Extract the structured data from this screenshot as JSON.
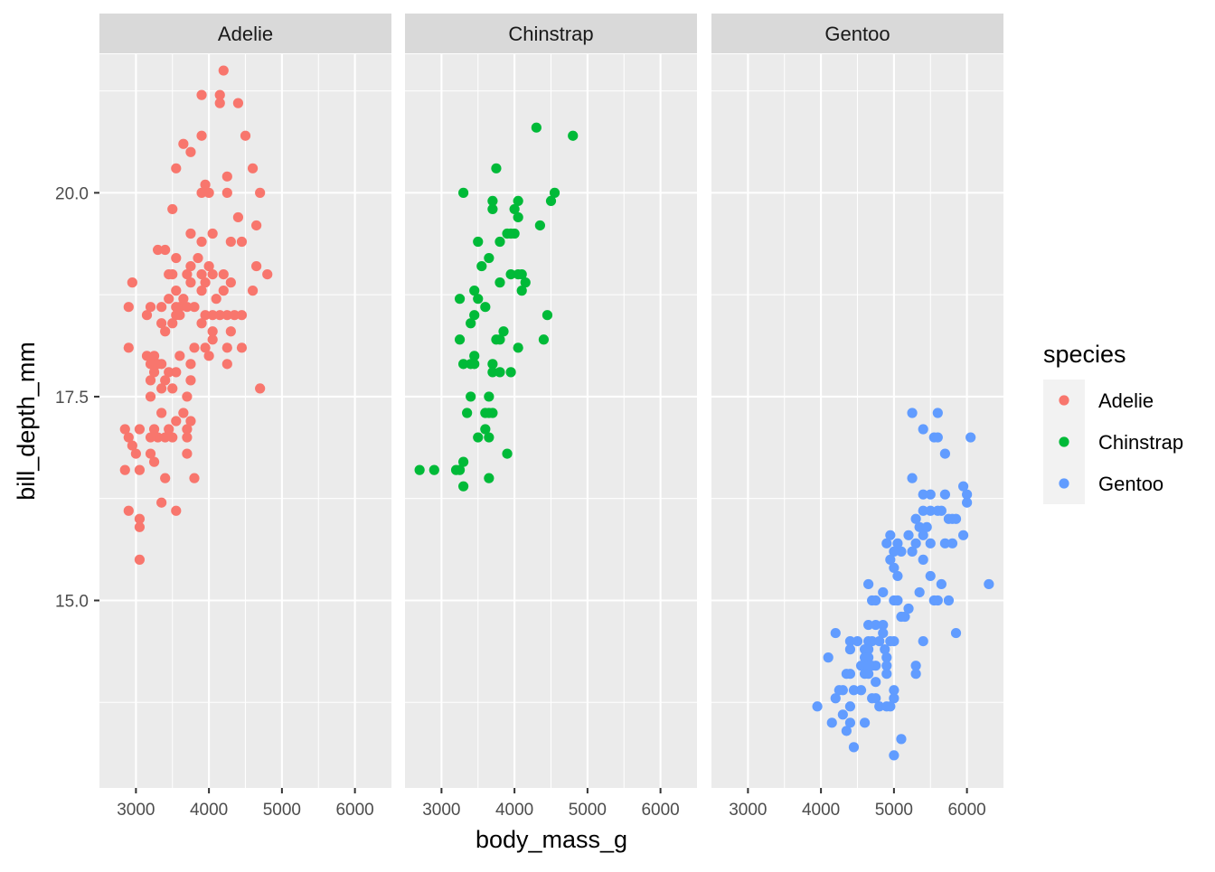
{
  "chart_data": {
    "type": "scatter",
    "facet_by": "species",
    "panels": [
      "Adelie",
      "Chinstrap",
      "Gentoo"
    ],
    "xlabel": "body_mass_g",
    "ylabel": "bill_depth_mm",
    "xlim": [
      2500,
      6500
    ],
    "ylim": [
      12.7,
      21.7
    ],
    "xticks": [
      3000,
      4000,
      5000,
      6000
    ],
    "yticks": [
      15.0,
      17.5,
      20.0
    ],
    "ytick_labels": [
      "15.0",
      "17.5",
      "20.0"
    ],
    "grid": true,
    "legend": {
      "title": "species",
      "placement": "right",
      "entries": [
        {
          "label": "Adelie",
          "color": "#F8766D"
        },
        {
          "label": "Chinstrap",
          "color": "#00BA38"
        },
        {
          "label": "Gentoo",
          "color": "#619CFF"
        }
      ]
    },
    "series": [
      {
        "name": "Adelie",
        "color": "#F8766D",
        "points": [
          [
            4200,
            21.5
          ],
          [
            3900,
            21.2
          ],
          [
            4150,
            21.2
          ],
          [
            4150,
            21.1
          ],
          [
            4400,
            21.1
          ],
          [
            3900,
            20.7
          ],
          [
            4500,
            20.7
          ],
          [
            3650,
            20.6
          ],
          [
            3750,
            20.5
          ],
          [
            3550,
            20.3
          ],
          [
            4600,
            20.3
          ],
          [
            4250,
            20.2
          ],
          [
            3950,
            20.1
          ],
          [
            3900,
            20.0
          ],
          [
            4000,
            20.0
          ],
          [
            4250,
            20.0
          ],
          [
            4700,
            20.0
          ],
          [
            3500,
            19.8
          ],
          [
            4400,
            19.7
          ],
          [
            4650,
            19.6
          ],
          [
            3750,
            19.5
          ],
          [
            4050,
            19.5
          ],
          [
            4300,
            19.4
          ],
          [
            3900,
            19.4
          ],
          [
            3300,
            19.3
          ],
          [
            3400,
            19.3
          ],
          [
            3850,
            19.2
          ],
          [
            4450,
            19.4
          ],
          [
            3550,
            19.2
          ],
          [
            3750,
            19.1
          ],
          [
            4650,
            19.1
          ],
          [
            4000,
            19.1
          ],
          [
            4200,
            19.0
          ],
          [
            3450,
            19.0
          ],
          [
            3500,
            19.0
          ],
          [
            3700,
            19.0
          ],
          [
            3900,
            19.0
          ],
          [
            4050,
            19.0
          ],
          [
            4800,
            19.0
          ],
          [
            2950,
            18.9
          ],
          [
            3750,
            18.9
          ],
          [
            3950,
            18.9
          ],
          [
            4300,
            18.9
          ],
          [
            3550,
            18.8
          ],
          [
            3900,
            18.8
          ],
          [
            4200,
            18.8
          ],
          [
            4100,
            18.7
          ],
          [
            4600,
            18.8
          ],
          [
            3650,
            18.7
          ],
          [
            3450,
            18.7
          ],
          [
            3600,
            18.6
          ],
          [
            3200,
            18.6
          ],
          [
            3350,
            18.6
          ],
          [
            3550,
            18.6
          ],
          [
            2900,
            18.6
          ],
          [
            3800,
            18.6
          ],
          [
            3700,
            18.6
          ],
          [
            3550,
            18.5
          ],
          [
            3150,
            18.5
          ],
          [
            3600,
            18.5
          ],
          [
            3950,
            18.5
          ],
          [
            4050,
            18.5
          ],
          [
            4250,
            18.5
          ],
          [
            4350,
            18.5
          ],
          [
            4450,
            18.5
          ],
          [
            4150,
            18.5
          ],
          [
            3350,
            18.4
          ],
          [
            3500,
            18.4
          ],
          [
            3900,
            18.4
          ],
          [
            3400,
            18.3
          ],
          [
            4050,
            18.3
          ],
          [
            4300,
            18.3
          ],
          [
            4050,
            18.2
          ],
          [
            3800,
            18.1
          ],
          [
            2900,
            18.1
          ],
          [
            3950,
            18.1
          ],
          [
            4250,
            18.1
          ],
          [
            4450,
            18.1
          ],
          [
            4000,
            18.0
          ],
          [
            3150,
            18.0
          ],
          [
            3250,
            18.0
          ],
          [
            3600,
            18.0
          ],
          [
            3200,
            17.9
          ],
          [
            3300,
            17.9
          ],
          [
            3350,
            17.9
          ],
          [
            3750,
            17.9
          ],
          [
            4250,
            17.9
          ],
          [
            3250,
            17.8
          ],
          [
            3450,
            17.8
          ],
          [
            3550,
            17.8
          ],
          [
            3200,
            17.7
          ],
          [
            3400,
            17.7
          ],
          [
            3750,
            17.7
          ],
          [
            3350,
            17.6
          ],
          [
            3500,
            17.6
          ],
          [
            4700,
            17.6
          ],
          [
            3200,
            17.5
          ],
          [
            3700,
            17.5
          ],
          [
            3350,
            17.3
          ],
          [
            3650,
            17.3
          ],
          [
            3550,
            17.2
          ],
          [
            3750,
            17.2
          ],
          [
            3250,
            17.1
          ],
          [
            3450,
            17.1
          ],
          [
            3050,
            17.1
          ],
          [
            3700,
            17.1
          ],
          [
            2850,
            17.1
          ],
          [
            3300,
            17.0
          ],
          [
            3400,
            17.0
          ],
          [
            3500,
            17.0
          ],
          [
            2900,
            17.0
          ],
          [
            3200,
            17.0
          ],
          [
            3700,
            17.0
          ],
          [
            2950,
            16.9
          ],
          [
            3200,
            16.8
          ],
          [
            3000,
            16.8
          ],
          [
            3700,
            16.8
          ],
          [
            3250,
            16.7
          ],
          [
            2850,
            16.6
          ],
          [
            3050,
            16.6
          ],
          [
            3400,
            16.5
          ],
          [
            3800,
            16.5
          ],
          [
            3350,
            16.2
          ],
          [
            2900,
            16.1
          ],
          [
            3550,
            16.1
          ],
          [
            3050,
            16.0
          ],
          [
            3050,
            15.9
          ],
          [
            3050,
            15.5
          ]
        ]
      },
      {
        "name": "Chinstrap",
        "color": "#00BA38",
        "points": [
          [
            4300,
            20.8
          ],
          [
            4800,
            20.7
          ],
          [
            3750,
            20.3
          ],
          [
            3300,
            20.0
          ],
          [
            4550,
            20.0
          ],
          [
            3700,
            19.9
          ],
          [
            4050,
            19.9
          ],
          [
            4500,
            19.9
          ],
          [
            4000,
            19.8
          ],
          [
            3700,
            19.8
          ],
          [
            4050,
            19.7
          ],
          [
            4350,
            19.6
          ],
          [
            3950,
            19.5
          ],
          [
            3900,
            19.5
          ],
          [
            4000,
            19.5
          ],
          [
            3500,
            19.4
          ],
          [
            3800,
            19.4
          ],
          [
            3650,
            19.2
          ],
          [
            3550,
            19.1
          ],
          [
            3800,
            18.9
          ],
          [
            3950,
            19.0
          ],
          [
            4050,
            19.0
          ],
          [
            4100,
            19.0
          ],
          [
            4150,
            18.9
          ],
          [
            3450,
            18.8
          ],
          [
            4100,
            18.8
          ],
          [
            3250,
            18.7
          ],
          [
            3500,
            18.7
          ],
          [
            3600,
            18.6
          ],
          [
            3450,
            18.5
          ],
          [
            4450,
            18.5
          ],
          [
            3400,
            18.4
          ],
          [
            3850,
            18.3
          ],
          [
            3800,
            18.2
          ],
          [
            3250,
            18.2
          ],
          [
            3750,
            18.2
          ],
          [
            4400,
            18.2
          ],
          [
            4050,
            18.1
          ],
          [
            3450,
            18.0
          ],
          [
            3300,
            17.9
          ],
          [
            3400,
            17.9
          ],
          [
            3450,
            17.9
          ],
          [
            3700,
            17.9
          ],
          [
            3700,
            17.8
          ],
          [
            3800,
            17.8
          ],
          [
            3950,
            17.8
          ],
          [
            3400,
            17.5
          ],
          [
            3650,
            17.5
          ],
          [
            3350,
            17.3
          ],
          [
            3600,
            17.3
          ],
          [
            3650,
            17.3
          ],
          [
            3700,
            17.3
          ],
          [
            3600,
            17.1
          ],
          [
            3500,
            17.0
          ],
          [
            3650,
            17.0
          ],
          [
            3900,
            16.8
          ],
          [
            3300,
            16.7
          ],
          [
            2700,
            16.6
          ],
          [
            2900,
            16.6
          ],
          [
            3250,
            16.6
          ],
          [
            3200,
            16.6
          ],
          [
            3650,
            16.5
          ],
          [
            3300,
            16.4
          ]
        ]
      },
      {
        "name": "Gentoo",
        "color": "#619CFF",
        "points": [
          [
            5250,
            17.3
          ],
          [
            5600,
            17.3
          ],
          [
            5400,
            17.1
          ],
          [
            5550,
            17.0
          ],
          [
            5600,
            17.0
          ],
          [
            6050,
            17.0
          ],
          [
            5700,
            16.8
          ],
          [
            5250,
            16.5
          ],
          [
            5950,
            16.4
          ],
          [
            5400,
            16.3
          ],
          [
            5500,
            16.3
          ],
          [
            5700,
            16.3
          ],
          [
            6000,
            16.3
          ],
          [
            6000,
            16.2
          ],
          [
            5400,
            16.1
          ],
          [
            5500,
            16.1
          ],
          [
            5600,
            16.1
          ],
          [
            5650,
            16.1
          ],
          [
            5300,
            16.0
          ],
          [
            5800,
            16.0
          ],
          [
            5850,
            16.0
          ],
          [
            5750,
            16.0
          ],
          [
            5350,
            15.9
          ],
          [
            5450,
            15.9
          ],
          [
            5200,
            15.8
          ],
          [
            5400,
            15.8
          ],
          [
            5950,
            15.8
          ],
          [
            5700,
            15.7
          ],
          [
            5800,
            15.7
          ],
          [
            4900,
            15.7
          ],
          [
            5050,
            15.7
          ],
          [
            5300,
            15.7
          ],
          [
            5500,
            15.7
          ],
          [
            4950,
            15.8
          ],
          [
            5100,
            15.6
          ],
          [
            5000,
            15.6
          ],
          [
            5250,
            15.6
          ],
          [
            5400,
            15.5
          ],
          [
            4950,
            15.5
          ],
          [
            5000,
            15.4
          ],
          [
            5050,
            15.3
          ],
          [
            5500,
            15.3
          ],
          [
            4650,
            15.2
          ],
          [
            5650,
            15.2
          ],
          [
            6300,
            15.2
          ],
          [
            4850,
            15.1
          ],
          [
            5350,
            15.1
          ],
          [
            5050,
            15.0
          ],
          [
            5550,
            15.0
          ],
          [
            5600,
            15.0
          ],
          [
            4700,
            15.0
          ],
          [
            4750,
            15.0
          ],
          [
            5000,
            15.0
          ],
          [
            5750,
            15.0
          ],
          [
            5200,
            14.9
          ],
          [
            5150,
            14.8
          ],
          [
            5100,
            14.8
          ],
          [
            4850,
            14.7
          ],
          [
            4650,
            14.7
          ],
          [
            4750,
            14.7
          ],
          [
            4850,
            14.6
          ],
          [
            4200,
            14.6
          ],
          [
            5850,
            14.6
          ],
          [
            4700,
            14.5
          ],
          [
            4650,
            14.5
          ],
          [
            4400,
            14.5
          ],
          [
            4500,
            14.5
          ],
          [
            4800,
            14.5
          ],
          [
            5000,
            14.5
          ],
          [
            4600,
            14.4
          ],
          [
            4650,
            14.4
          ],
          [
            4400,
            14.4
          ],
          [
            4875,
            14.4
          ],
          [
            4950,
            14.5
          ],
          [
            5400,
            14.5
          ],
          [
            4600,
            14.3
          ],
          [
            4650,
            14.3
          ],
          [
            4900,
            14.3
          ],
          [
            4100,
            14.3
          ],
          [
            4700,
            14.2
          ],
          [
            4750,
            14.2
          ],
          [
            4550,
            14.2
          ],
          [
            4650,
            14.2
          ],
          [
            4900,
            14.2
          ],
          [
            5300,
            14.2
          ],
          [
            4600,
            14.1
          ],
          [
            4650,
            14.1
          ],
          [
            4900,
            14.1
          ],
          [
            4350,
            14.1
          ],
          [
            4400,
            14.1
          ],
          [
            4750,
            14.0
          ],
          [
            5300,
            14.1
          ],
          [
            4250,
            13.9
          ],
          [
            4300,
            13.9
          ],
          [
            4550,
            13.9
          ],
          [
            5000,
            13.9
          ],
          [
            4450,
            13.9
          ],
          [
            5000,
            13.8
          ],
          [
            4700,
            13.8
          ],
          [
            4750,
            13.8
          ],
          [
            4200,
            13.8
          ],
          [
            4400,
            13.7
          ],
          [
            3950,
            13.7
          ],
          [
            4800,
            13.7
          ],
          [
            4900,
            13.7
          ],
          [
            4950,
            13.7
          ],
          [
            4300,
            13.6
          ],
          [
            4400,
            13.5
          ],
          [
            4600,
            13.5
          ],
          [
            4150,
            13.5
          ],
          [
            4350,
            13.4
          ],
          [
            5100,
            13.3
          ],
          [
            4450,
            13.2
          ],
          [
            5000,
            13.1
          ]
        ]
      }
    ]
  }
}
